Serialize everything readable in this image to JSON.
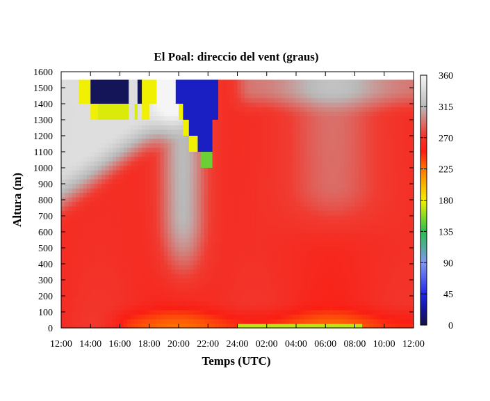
{
  "chart_data": {
    "type": "heatmap",
    "title": "El Poal: direccio del vent (graus)",
    "xlabel": "Temps (UTC)",
    "ylabel": "Altura (m)",
    "x_ticks": [
      "12:00",
      "14:00",
      "16:00",
      "18:00",
      "20:00",
      "22:00",
      "24:00",
      "02:00",
      "04:00",
      "06:00",
      "08:00",
      "10:00",
      "12:00"
    ],
    "y_ticks": [
      0,
      100,
      200,
      300,
      400,
      500,
      600,
      700,
      800,
      900,
      1000,
      1100,
      1200,
      1300,
      1400,
      1500,
      1600
    ],
    "xlim_hours": [
      0,
      24
    ],
    "ylim": [
      0,
      1600
    ],
    "colorbar": {
      "ticks": [
        0,
        45,
        90,
        135,
        180,
        225,
        270,
        315,
        360
      ],
      "range": [
        0,
        360
      ]
    },
    "grid": false
  }
}
